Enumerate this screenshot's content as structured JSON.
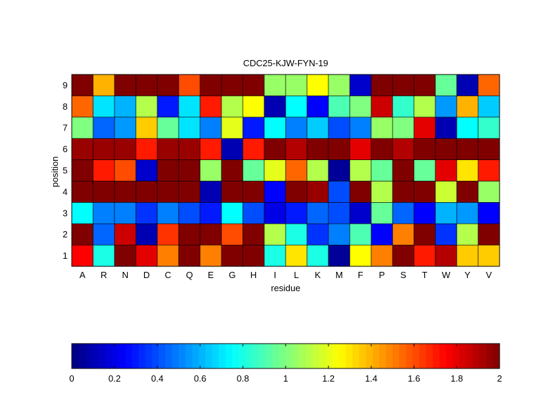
{
  "chart_data": {
    "type": "heatmap",
    "title": "CDC25-KJW-FYN-19",
    "xlabel": "residue",
    "ylabel": "position",
    "x_categories": [
      "A",
      "R",
      "N",
      "D",
      "C",
      "Q",
      "E",
      "G",
      "H",
      "I",
      "L",
      "K",
      "M",
      "F",
      "P",
      "S",
      "T",
      "W",
      "Y",
      "V"
    ],
    "y_categories": [
      "1",
      "2",
      "3",
      "4",
      "5",
      "6",
      "7",
      "8",
      "9"
    ],
    "values": [
      [
        1.75,
        0.8,
        2.0,
        1.8,
        1.5,
        2.0,
        1.5,
        2.0,
        2.0,
        0.8,
        1.3,
        0.8,
        0.05,
        1.25,
        1.5,
        2.0,
        1.7,
        1.9,
        1.35,
        1.35
      ],
      [
        2.0,
        0.45,
        1.85,
        0.1,
        1.65,
        2.0,
        2.0,
        1.6,
        2.0,
        1.1,
        0.8,
        0.35,
        0.5,
        0.9,
        0.25,
        1.5,
        2.0,
        0.35,
        1.1,
        2.0
      ],
      [
        0.75,
        0.5,
        0.5,
        0.35,
        0.5,
        0.4,
        0.3,
        0.75,
        0.4,
        0.2,
        0.3,
        0.45,
        0.4,
        0.15,
        0.95,
        0.45,
        0.25,
        0.6,
        0.55,
        0.25
      ],
      [
        2.0,
        2.0,
        2.0,
        2.0,
        2.0,
        2.0,
        0.1,
        2.0,
        2.0,
        0.25,
        2.0,
        1.95,
        0.4,
        2.0,
        1.1,
        2.0,
        2.0,
        1.15,
        2.0,
        1.05
      ],
      [
        2.0,
        1.7,
        1.6,
        0.15,
        2.0,
        2.0,
        1.05,
        2.0,
        0.95,
        1.2,
        1.55,
        1.1,
        0.05,
        1.1,
        0.95,
        2.0,
        0.95,
        1.8,
        1.3,
        1.7
      ],
      [
        1.95,
        1.95,
        1.95,
        1.7,
        1.95,
        1.95,
        1.7,
        0.1,
        1.7,
        2.0,
        1.9,
        2.0,
        2.0,
        1.8,
        2.0,
        1.9,
        2.0,
        2.0,
        2.0,
        2.0
      ],
      [
        1.0,
        0.45,
        0.55,
        1.35,
        0.95,
        0.7,
        0.5,
        1.2,
        0.3,
        0.75,
        0.5,
        0.65,
        0.4,
        0.5,
        1.05,
        1.0,
        1.8,
        0.1,
        0.75,
        0.85
      ],
      [
        1.55,
        0.7,
        0.6,
        1.1,
        0.3,
        0.7,
        1.7,
        1.1,
        1.25,
        0.1,
        0.75,
        0.25,
        0.9,
        1.0,
        1.85,
        0.85,
        1.1,
        0.55,
        1.4,
        0.65
      ],
      [
        2.0,
        1.4,
        2.0,
        2.0,
        2.0,
        1.6,
        2.0,
        2.0,
        2.0,
        1.05,
        1.05,
        1.25,
        1.05,
        0.15,
        2.0,
        2.0,
        2.0,
        0.95,
        0.1,
        1.55
      ]
    ],
    "colorbar": {
      "range": [
        0,
        2
      ],
      "ticks": [
        "0",
        "0.2",
        "0.4",
        "0.6",
        "0.8",
        "1",
        "1.2",
        "1.4",
        "1.6",
        "1.8",
        "2"
      ],
      "colormap": "jet",
      "orientation": "horizontal",
      "placement": "bottom"
    },
    "grid": true
  }
}
